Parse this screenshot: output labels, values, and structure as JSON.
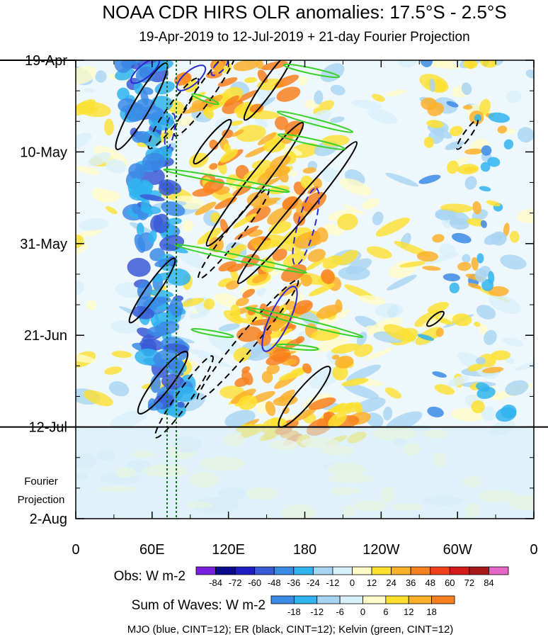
{
  "chart_data": {
    "type": "heatmap",
    "title": "NOAA CDR HIRS OLR anomalies: 17.5°S - 2.5°S",
    "subtitle": "19-Apr-2019 to 12-Jul-2019 + 21-day Fourier Projection",
    "x_ticks": [
      "0",
      "60E",
      "120E",
      "180",
      "120W",
      "60W",
      "0"
    ],
    "x_values": [
      0,
      60,
      120,
      180,
      240,
      300,
      360
    ],
    "xlim": [
      0,
      360
    ],
    "y_ticks": [
      "19-Apr",
      "10-May",
      "31-May",
      "21-Jun",
      "12-Jul",
      "2-Aug"
    ],
    "y_values": [
      0,
      21,
      42,
      63,
      84,
      105
    ],
    "ylim": [
      0,
      105
    ],
    "obs_end_day": 84,
    "projection_label": [
      "Fourier",
      "Projection"
    ],
    "obs_colorbar": {
      "label": "Obs: W m-2",
      "levels": [
        "-84",
        "-72",
        "-60",
        "-48",
        "-36",
        "-24",
        "-12",
        "0",
        "12",
        "24",
        "36",
        "48",
        "60",
        "72",
        "84"
      ],
      "colors": [
        "#7a1fe0",
        "#0a0a8c",
        "#1d1dc2",
        "#3a5bd6",
        "#3b8ae6",
        "#2fb4ef",
        "#a8d4f2",
        "#d8f0fa",
        "#fffbc8",
        "#fde02e",
        "#fbb02a",
        "#f8801f",
        "#f0421a",
        "#d51a1a",
        "#a81818",
        "#e466c6"
      ]
    },
    "wave_colorbar": {
      "label": "Sum of Waves: W m-2",
      "levels": [
        "-18",
        "-12",
        "-6",
        "0",
        "6",
        "12",
        "18"
      ],
      "colors": [
        "#3b8ae6",
        "#2fb4ef",
        "#a8d4f2",
        "#d8f0fa",
        "#fffbc8",
        "#fde02e",
        "#fbb02a",
        "#f8801f"
      ]
    },
    "footer": "MJO (blue, CINT=12); ER (black, CINT=12); Kelvin (green, CINT=12)",
    "series": [
      {
        "name": "MJO",
        "color": "#2a2ad0"
      },
      {
        "name": "ER",
        "color": "#000000"
      },
      {
        "name": "Kelvin",
        "color": "#39d12a"
      }
    ]
  }
}
